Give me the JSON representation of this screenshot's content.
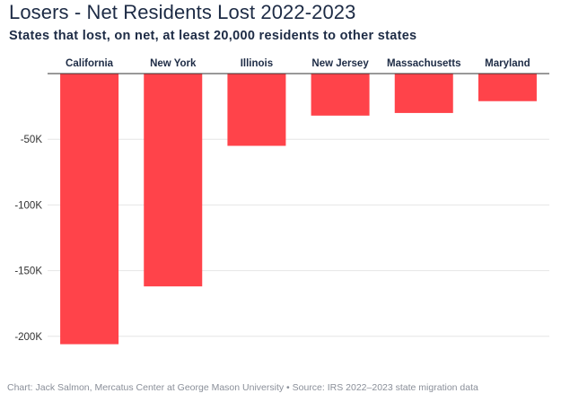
{
  "title": "Losers - Net Residents Lost 2022-2023",
  "subtitle": "States that lost, on net, at least 20,000 residents to other states",
  "source": "Chart: Jack Salmon, Mercatus Center at George Mason University • Source: IRS 2022–2023 state migration data",
  "colors": {
    "bar": "#ff434a",
    "grid": "#e6e6e6",
    "baseline": "#333333"
  },
  "chart_data": {
    "type": "bar",
    "title": "Losers - Net Residents Lost 2022-2023",
    "subtitle": "States that lost, on net, at least 20,000 residents to other states",
    "categories": [
      "California",
      "New York",
      "Illinois",
      "New Jersey",
      "Massachusetts",
      "Maryland"
    ],
    "values": [
      -206000,
      -162000,
      -55000,
      -32000,
      -30000,
      -21000
    ],
    "ylim": [
      -210000,
      0
    ],
    "yticks": [
      -50000,
      -100000,
      -150000,
      -200000
    ],
    "ytick_labels": [
      "-50K",
      "-100K",
      "-150K",
      "-200K"
    ],
    "xlabel": "",
    "ylabel": "",
    "grid": true,
    "category_axis_position": "top"
  }
}
